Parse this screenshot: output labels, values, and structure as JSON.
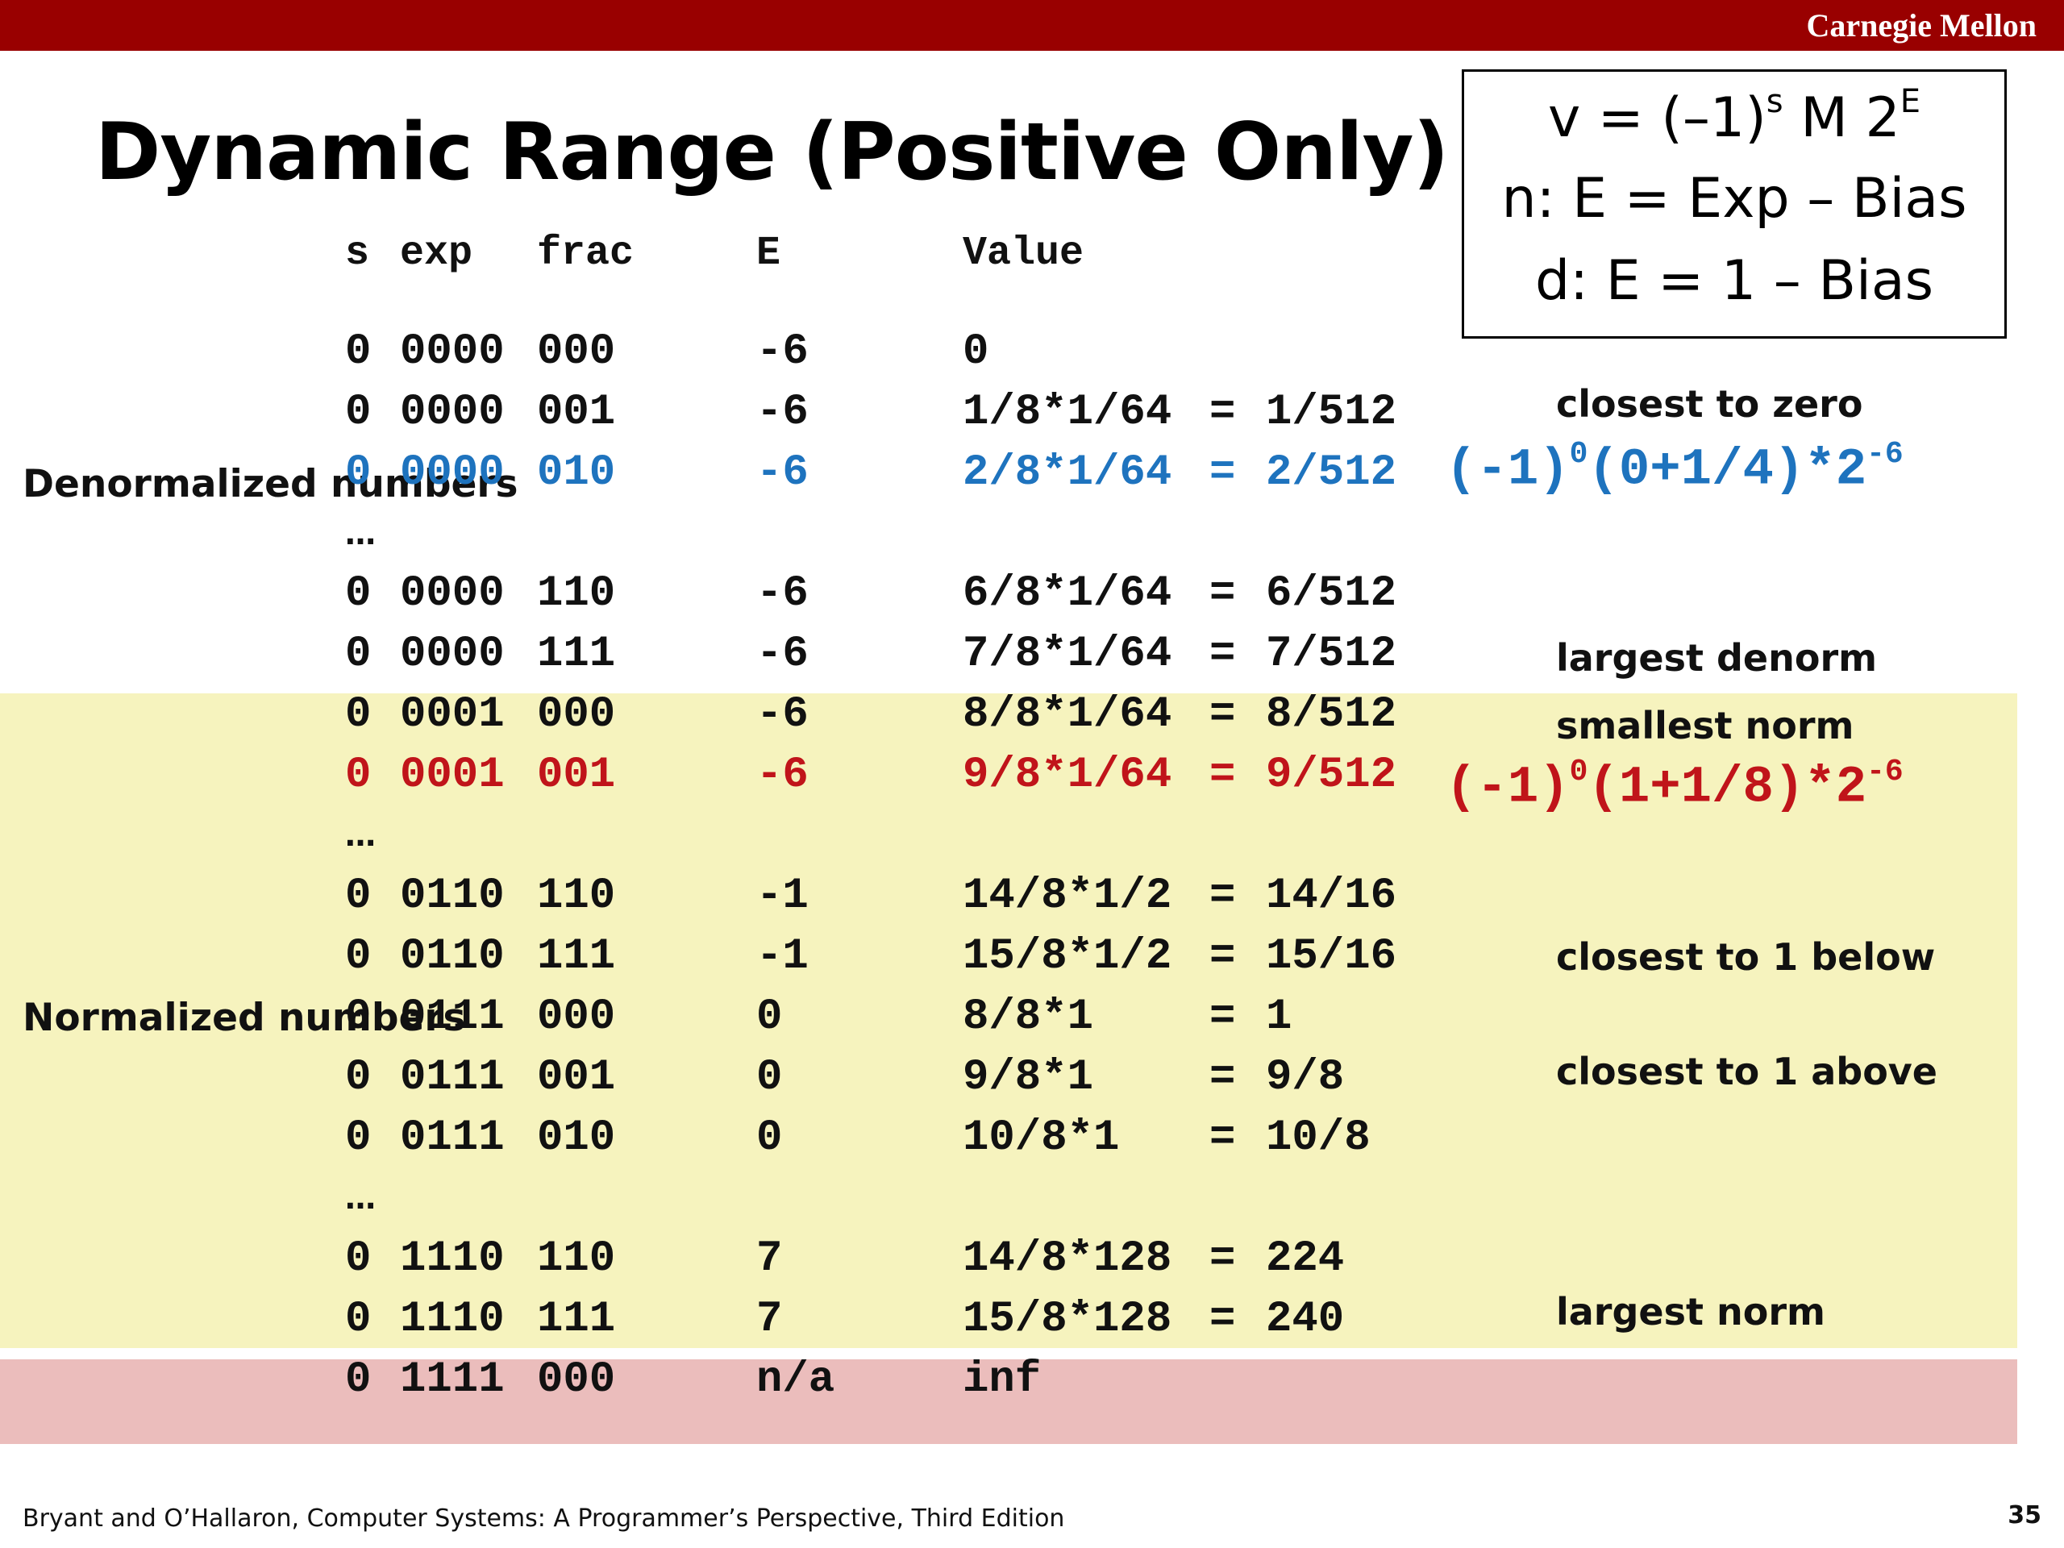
{
  "header": {
    "brand": "Carnegie Mellon"
  },
  "title": "Dynamic Range (Positive Only)",
  "formula": {
    "line1_prefix": "v = (–1)",
    "line1_sup_s": "s",
    "line1_mid": " M 2",
    "line1_sup_E": "E",
    "line2": "n: E = Exp – Bias",
    "line3": "d: E = 1 – Bias"
  },
  "columns": {
    "s": "s",
    "exp": "exp",
    "frac": "frac",
    "E": "E",
    "value": "Value"
  },
  "side_labels": {
    "denormalized": "Denormalized numbers",
    "normalized": "Normalized numbers"
  },
  "rows": [
    {
      "s": "0",
      "exp": "0000",
      "frac": "000",
      "E": "-6",
      "value": "0",
      "eq": "",
      "result": ""
    },
    {
      "s": "0",
      "exp": "0000",
      "frac": "001",
      "E": "-6",
      "value": "1/8*1/64",
      "eq": "=",
      "result": "1/512"
    },
    {
      "s": "0",
      "exp": "0000",
      "frac": "010",
      "E": "-6",
      "value": "2/8*1/64",
      "eq": "=",
      "result": "2/512"
    },
    {
      "s": "0",
      "exp": "0000",
      "frac": "110",
      "E": "-6",
      "value": "6/8*1/64",
      "eq": "=",
      "result": "6/512"
    },
    {
      "s": "0",
      "exp": "0000",
      "frac": "111",
      "E": "-6",
      "value": "7/8*1/64",
      "eq": "=",
      "result": "7/512"
    },
    {
      "s": "0",
      "exp": "0001",
      "frac": "000",
      "E": "-6",
      "value": "8/8*1/64",
      "eq": "=",
      "result": "8/512"
    },
    {
      "s": "0",
      "exp": "0001",
      "frac": "001",
      "E": "-6",
      "value": "9/8*1/64",
      "eq": "=",
      "result": "9/512"
    },
    {
      "s": "0",
      "exp": "0110",
      "frac": "110",
      "E": "-1",
      "value": "14/8*1/2",
      "eq": "=",
      "result": "14/16"
    },
    {
      "s": "0",
      "exp": "0110",
      "frac": "111",
      "E": "-1",
      "value": "15/8*1/2",
      "eq": "=",
      "result": "15/16"
    },
    {
      "s": "0",
      "exp": "0111",
      "frac": "000",
      "E": "0",
      "value": "8/8*1",
      "eq": "=",
      "result": "1"
    },
    {
      "s": "0",
      "exp": "0111",
      "frac": "001",
      "E": "0",
      "value": "9/8*1",
      "eq": "=",
      "result": "9/8"
    },
    {
      "s": "0",
      "exp": "0111",
      "frac": "010",
      "E": "0",
      "value": "10/8*1",
      "eq": "=",
      "result": "10/8"
    },
    {
      "s": "0",
      "exp": "1110",
      "frac": "110",
      "E": "7",
      "value": "14/8*128",
      "eq": "=",
      "result": "224"
    },
    {
      "s": "0",
      "exp": "1110",
      "frac": "111",
      "E": "7",
      "value": "15/8*128",
      "eq": "=",
      "result": "240"
    },
    {
      "s": "0",
      "exp": "1111",
      "frac": "000",
      "E": "n/a",
      "value": "inf",
      "eq": "",
      "result": ""
    }
  ],
  "ellipsis": "…",
  "notes": {
    "closest_to_zero": "closest to zero",
    "largest_denorm": "largest denorm",
    "smallest_norm": "smallest norm",
    "closest_below": "closest to 1 below",
    "closest_above": "closest to 1 above",
    "largest_norm": "largest norm"
  },
  "expressions": {
    "blue": {
      "base": "(-1)",
      "sup1": "0",
      "mid": "(0+1/4)*2",
      "sup2": "-6"
    },
    "red": {
      "base": "(-1)",
      "sup1": "0",
      "mid": "(1+1/8)*2",
      "sup2": "-6"
    }
  },
  "colors": {
    "brand_bar": "#990000",
    "blue": "#1e73be",
    "red": "#c0141a",
    "normalized_band": "#f6f3be",
    "inf_band": "#ebbdbc"
  },
  "footer": {
    "citation": "Bryant and O’Hallaron, Computer Systems: A Programmer’s Perspective, Third Edition",
    "page": "35"
  }
}
